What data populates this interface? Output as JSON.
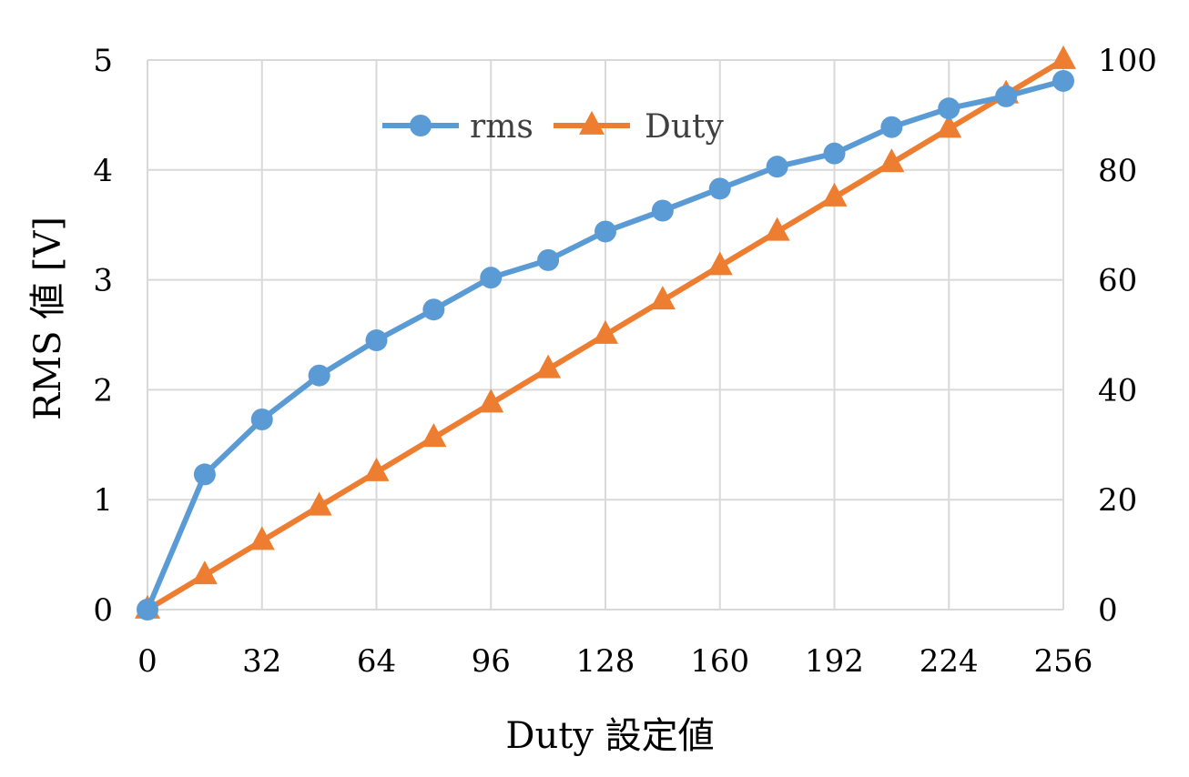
{
  "chart_data": {
    "type": "line",
    "title": "",
    "xlabel": "Duty 設定値",
    "ylabel": "RMS 値 [V]",
    "y2label": "",
    "xlim": [
      0,
      256
    ],
    "ylim": [
      0,
      5
    ],
    "y2lim": [
      0,
      100
    ],
    "x_ticks": [
      0,
      32,
      64,
      96,
      128,
      160,
      192,
      224,
      256
    ],
    "y_ticks": [
      0,
      1,
      2,
      3,
      4,
      5
    ],
    "y2_ticks": [
      0,
      20,
      40,
      60,
      80,
      100
    ],
    "x_tick_labels": [
      "0",
      "32",
      "64",
      "96",
      "128",
      "160",
      "192",
      "224",
      "256"
    ],
    "y_tick_labels": [
      "0",
      "1",
      "2",
      "3",
      "4",
      "5"
    ],
    "y2_tick_labels": [
      "0",
      "20",
      "40",
      "60",
      "80",
      "100"
    ],
    "grid": true,
    "legend_position": "top-center",
    "x": [
      0,
      16,
      32,
      48,
      64,
      80,
      96,
      112,
      128,
      144,
      160,
      176,
      192,
      208,
      224,
      240,
      256
    ],
    "series": [
      {
        "name": "rms",
        "axis": "left",
        "color": "#5b9bd5",
        "marker": "circle",
        "values": [
          0.0,
          1.23,
          1.73,
          2.13,
          2.45,
          2.73,
          3.02,
          3.18,
          3.44,
          3.63,
          3.83,
          4.03,
          4.15,
          4.39,
          4.56,
          4.67,
          4.81
        ]
      },
      {
        "name": "Duty",
        "axis": "right",
        "color": "#ed7d31",
        "marker": "triangle",
        "values": [
          0.0,
          6.25,
          12.5,
          18.75,
          25.0,
          31.25,
          37.5,
          43.75,
          50.0,
          56.25,
          62.5,
          68.75,
          75.0,
          81.25,
          87.5,
          93.75,
          100.0
        ]
      }
    ]
  }
}
